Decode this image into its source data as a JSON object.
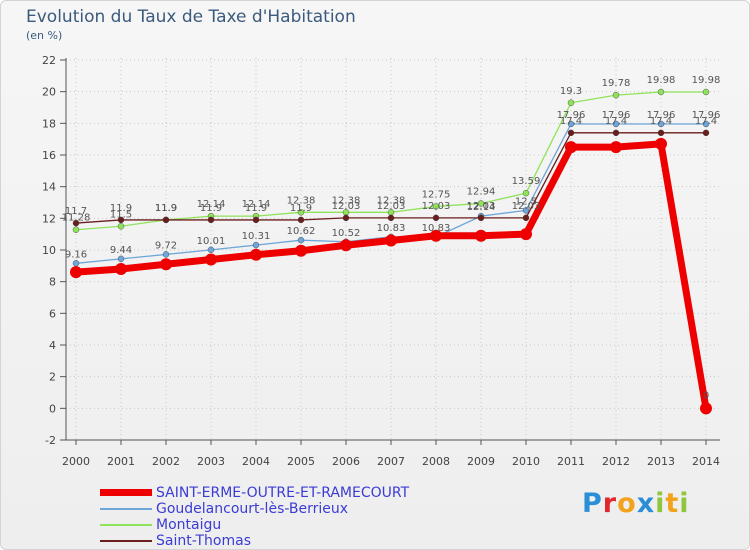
{
  "header": {
    "title": "Evolution du Taux de Taxe d'Habitation",
    "unit": "(en %)"
  },
  "brand": {
    "logo": "Proxiti"
  },
  "colors": {
    "series_saint_erme": "#ee0000",
    "series_goudelancourt": "#6ea6d9",
    "series_montaigu": "#8fe35b",
    "series_saint_thomas": "#6b1e1e",
    "axis": "#555555",
    "grid": "#c8c8c8",
    "title": "#3c5a7d",
    "legend_text": "#3b3bd6",
    "label": "#555555"
  },
  "chart_data": {
    "type": "line",
    "title": "Evolution du Taux de Taxe d'Habitation",
    "ylabel": "(en %)",
    "xlabel": "",
    "ylim": [
      -2,
      22
    ],
    "yticks": [
      -2,
      0,
      2,
      4,
      6,
      8,
      10,
      12,
      14,
      16,
      18,
      20,
      22
    ],
    "grid": true,
    "x": [
      "2000",
      "2001",
      "2002",
      "2003",
      "2004",
      "2005",
      "2006",
      "2007",
      "2008",
      "2009",
      "2010",
      "2011",
      "2012",
      "2013",
      "2014"
    ],
    "series": [
      {
        "name": "SAINT-ERME-OUTRE-ET-RAMECOURT",
        "values": [
          8.6,
          8.8,
          9.1,
          9.4,
          9.7,
          9.95,
          10.3,
          10.6,
          10.9,
          10.9,
          11.0,
          16.5,
          16.5,
          16.7,
          0
        ],
        "labels": [
          "",
          "",
          "",
          "",
          "",
          "",
          "",
          "",
          "",
          "",
          "",
          "",
          "",
          "",
          "0"
        ]
      },
      {
        "name": "Goudelancourt-lès-Berrieux",
        "values": [
          9.16,
          9.44,
          9.72,
          10.01,
          10.31,
          10.62,
          10.52,
          10.83,
          10.83,
          12.14,
          12.5,
          17.96,
          17.96,
          17.96,
          17.96
        ],
        "labels": [
          "9.16",
          "9.44",
          "9.72",
          "10.01",
          "10.31",
          "10.62",
          "10.52",
          "10.83",
          "10.83",
          "12.14",
          "12.5",
          "17.96",
          "17.96",
          "17.96",
          "17.96"
        ]
      },
      {
        "name": "Montaigu",
        "values": [
          11.28,
          11.5,
          11.9,
          12.14,
          12.14,
          12.38,
          12.38,
          12.38,
          12.75,
          12.94,
          13.59,
          19.3,
          19.78,
          19.98,
          19.98
        ],
        "labels": [
          "11.28",
          "11.5",
          "11.9",
          "12.14",
          "12.14",
          "12.38",
          "12.38",
          "12.38",
          "12.75",
          "12.94",
          "13.59",
          "19.3",
          "19.78",
          "19.98",
          "19.98"
        ]
      },
      {
        "name": "Saint-Thomas",
        "values": [
          11.7,
          11.9,
          11.9,
          11.9,
          11.9,
          11.9,
          12.03,
          12.03,
          12.03,
          12.03,
          12.03,
          17.4,
          17.4,
          17.4,
          17.4
        ],
        "labels": [
          "11.7",
          "11.9",
          "11.9",
          "11.9",
          "11.9",
          "11.9",
          "12.03",
          "12.03",
          "12.03",
          "12.03",
          "12.03",
          "17.4",
          "17.4",
          "17.4",
          "17.4"
        ]
      }
    ]
  }
}
